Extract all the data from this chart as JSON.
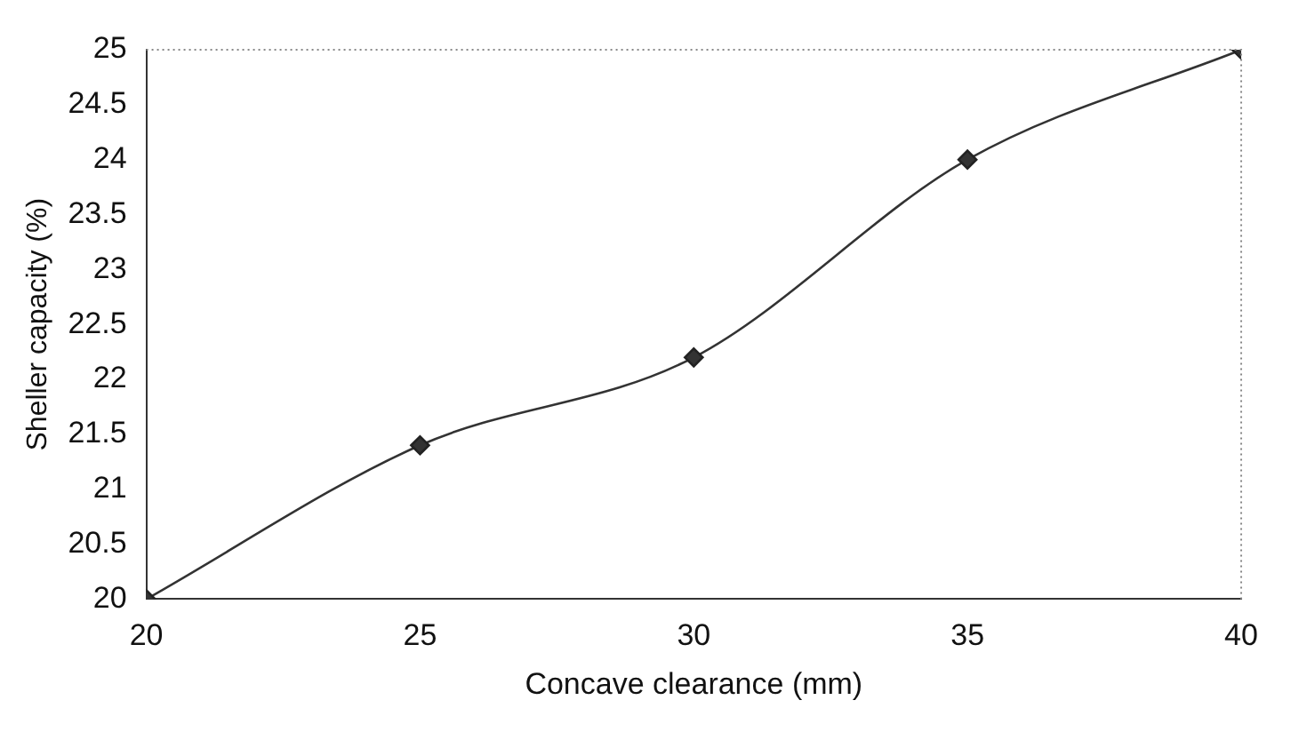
{
  "chart_data": {
    "type": "line",
    "xlabel": "Concave clearance (mm)",
    "ylabel": "Sheller capacity (%)",
    "x": [
      20,
      25,
      30,
      35,
      40
    ],
    "series": [
      {
        "color": "#333333",
        "values": [
          20,
          21.4,
          22.2,
          24.0,
          25
        ]
      }
    ],
    "xlim": [
      20,
      40
    ],
    "xticks": [
      20,
      25,
      30,
      35,
      40
    ],
    "ylim": [
      20,
      25
    ],
    "yticks": [
      20,
      20.5,
      21,
      21.5,
      22,
      22.5,
      23,
      23.5,
      24,
      24.5,
      25
    ],
    "grid": false,
    "legend": false,
    "marker": "diamond",
    "line_style": "solid"
  }
}
